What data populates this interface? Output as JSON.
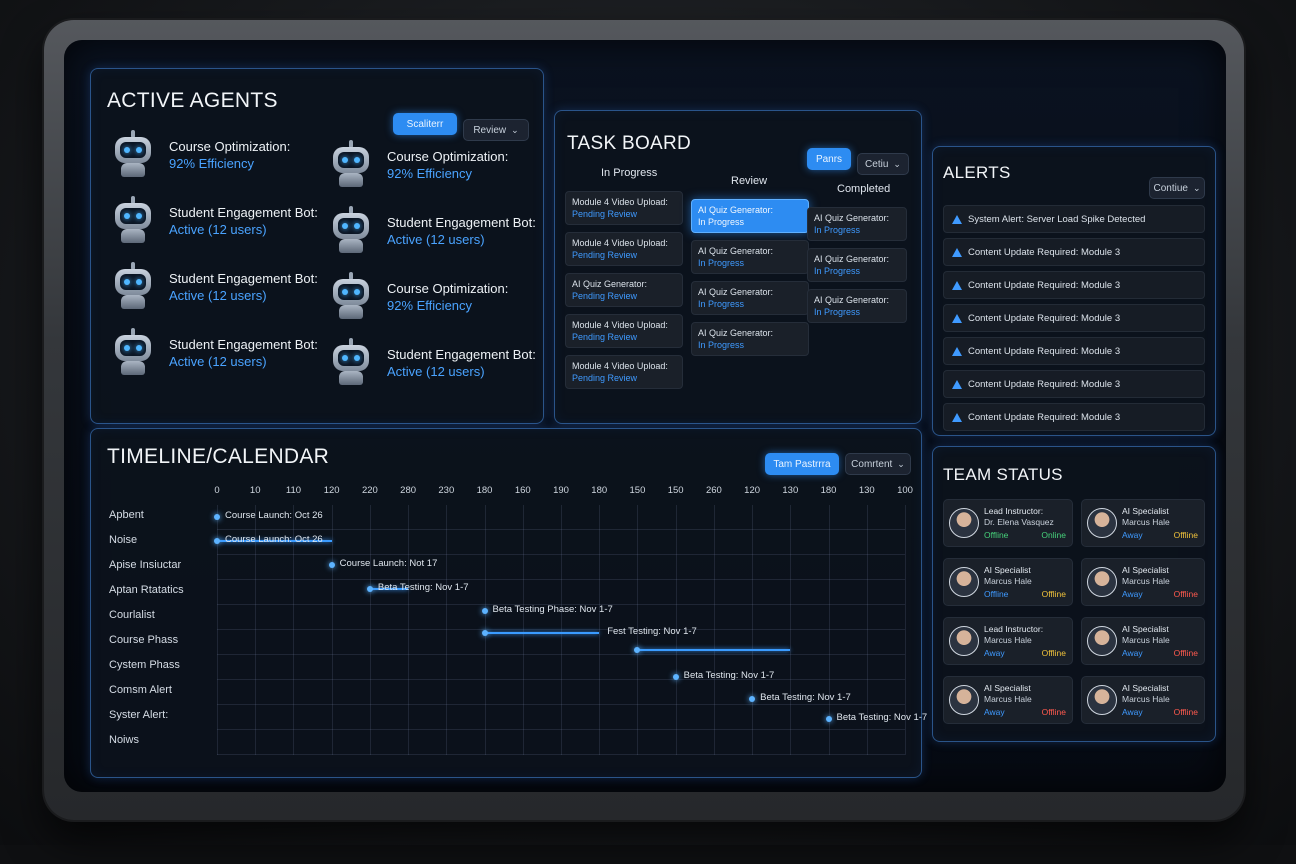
{
  "agents_panel": {
    "title": "ACTIVE AGENTS",
    "btn_primary": "Scaliterr",
    "btn_secondary": "Review",
    "agents": [
      {
        "name": "Course Optimization:",
        "status": "92% Efficiency"
      },
      {
        "name": "Course Optimization:",
        "status": "92% Efficiency"
      },
      {
        "name": "Student Engagement Bot:",
        "status": "Active (12 users)"
      },
      {
        "name": "Student Engagement Bot:",
        "status": "Active (12 users)"
      },
      {
        "name": "Student Engagement Bot:",
        "status": "Active (12 users)"
      },
      {
        "name": "Course Optimization:",
        "status": "92% Efficiency"
      },
      {
        "name": "Student Engagement Bot:",
        "status": "Active (12 users)"
      },
      {
        "name": "Student Engagement Bot:",
        "status": "Active (12 users)"
      }
    ]
  },
  "task_board": {
    "title": "TASK BOARD",
    "btn_primary": "Panrs",
    "btn_secondary": "Cetiu",
    "columns": [
      {
        "name": "In Progress",
        "cards": [
          {
            "title": "Module 4 Video Upload:",
            "status": "Pending Review"
          },
          {
            "title": "Module 4 Video Upload:",
            "status": "Pending Review"
          },
          {
            "title": "AI Quiz Generator:",
            "status": "Pending Review"
          },
          {
            "title": "Module 4 Video Upload:",
            "status": "Pending Review"
          },
          {
            "title": "Module 4 Video Upload:",
            "status": "Pending Review"
          }
        ]
      },
      {
        "name": "Review",
        "cards": [
          {
            "title": "AI Quiz Generator:",
            "status": "In Progress",
            "active": true
          },
          {
            "title": "AI Quiz Generator:",
            "status": "In Progress"
          },
          {
            "title": "AI Quiz Generator:",
            "status": "In Progress"
          },
          {
            "title": "AI Quiz Generator:",
            "status": "In Progress"
          }
        ]
      },
      {
        "name": "Completed",
        "cards": [
          {
            "title": "AI Quiz Generator:",
            "status": "In Progress"
          },
          {
            "title": "AI Quiz Generator:",
            "status": "In Progress"
          },
          {
            "title": "AI Quiz Generator:",
            "status": "In Progress"
          }
        ]
      }
    ]
  },
  "alerts": {
    "title": "ALERTS",
    "btn": "Contiue",
    "items": [
      "System Alert: Server Load Spike Detected",
      "Content Update Required: Module 3",
      "Content Update Required: Module 3",
      "Content Update Required: Module 3",
      "Content Update Required: Module 3",
      "Content Update Required: Module 3",
      "Content Update Required: Module 3"
    ]
  },
  "timeline": {
    "title": "TIMELINE/CALENDAR",
    "btn_primary": "Tam Pastrrra",
    "btn_secondary": "Comrtent",
    "ticks": [
      "0",
      "10",
      "110",
      "120",
      "220",
      "280",
      "230",
      "180",
      "160",
      "190",
      "180",
      "150",
      "150",
      "260",
      "120",
      "130",
      "180",
      "130",
      "100"
    ],
    "rows": [
      "Apbent",
      "Noise",
      "Apise Insiuctar",
      "Aptan Rtatatics",
      "Courlalist",
      "Course Phass",
      "Cystem Phass",
      "Comsm Alert",
      "Syster Alert:",
      "Noiws"
    ],
    "events": [
      "Course Launch: Oct 26",
      "Course Launch: Oct 26",
      "Course Launch: Not 17",
      "Beta Testing: Nov 1-7",
      "Beta Testing Phase: Nov 1-7",
      "Fest Testing: Nov 1-7",
      "Beta Testing: Nov 1-7",
      "Beta Testing: Nov 1-7",
      "Beta Testing: Nov 1-7"
    ]
  },
  "team": {
    "title": "TEAM STATUS",
    "members": [
      {
        "role": "Lead Instructor:",
        "name": "Dr. Elena Vasquez",
        "status": "Offline",
        "status2": "Online",
        "s2": "online",
        "s1color": "#46d17a"
      },
      {
        "role": "AI Specialist",
        "name": "Marcus Hale",
        "status": "Away",
        "status2": "Offline",
        "s2": "away",
        "s1color": "#3f9aff"
      },
      {
        "role": "AI Specialist",
        "name": "Marcus Hale",
        "status": "Offline",
        "status2": "Offline",
        "s2": "away",
        "s1color": "#3f9aff"
      },
      {
        "role": "AI Specialist",
        "name": "Marcus Hale",
        "status": "Away",
        "status2": "Offline",
        "s2": "offline",
        "s1color": "#3f9aff"
      },
      {
        "role": "Lead Instructor:",
        "name": "Marcus Hale",
        "status": "Away",
        "status2": "Offline",
        "s2": "away",
        "s1color": "#3f9aff"
      },
      {
        "role": "AI Specialist",
        "name": "Marcus Hale",
        "status": "Away",
        "status2": "Offline",
        "s2": "offline",
        "s1color": "#3f9aff"
      },
      {
        "role": "AI Specialist",
        "name": "Marcus Hale",
        "status": "Away",
        "status2": "Offline",
        "s2": "offline",
        "s1color": "#3f9aff"
      },
      {
        "role": "AI Specialist",
        "name": "Marcus Hale",
        "status": "Away",
        "status2": "Offline",
        "s2": "offline",
        "s1color": "#3f9aff"
      }
    ]
  },
  "colors": {
    "accent": "#2d8cf2",
    "online": "#46d17a",
    "away": "#f0c23b",
    "offline": "#ff5a4e"
  }
}
